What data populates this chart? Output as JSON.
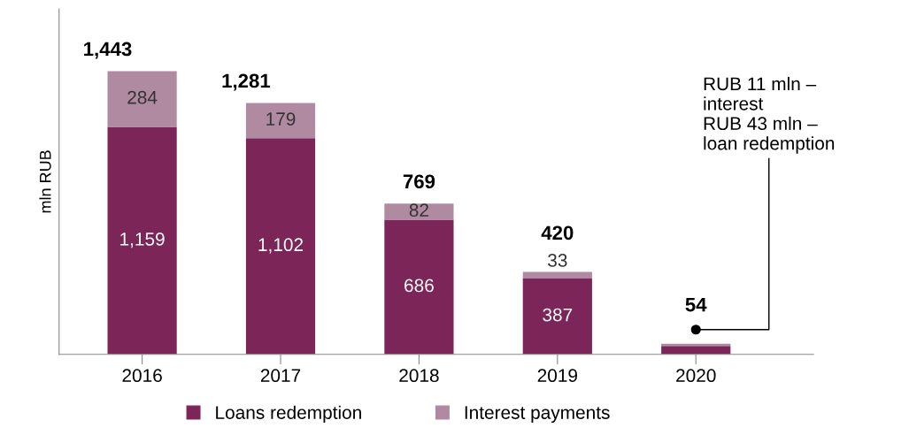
{
  "chart_data": {
    "type": "bar",
    "stacked": true,
    "relative": false,
    "ylabel": "mln RUB",
    "categories": [
      "2016",
      "2017",
      "2018",
      "2019",
      "2020"
    ],
    "series": [
      {
        "name": "Loans redemption",
        "color": "#7b2559",
        "values": [
          1159,
          1102,
          686,
          387,
          43
        ],
        "value_labels": [
          "1,159",
          "1,102",
          "686",
          "387",
          null
        ]
      },
      {
        "name": "Interest payments",
        "color": "#b08aa0",
        "values": [
          284,
          179,
          82,
          33,
          11
        ],
        "value_labels": [
          "284",
          "179",
          "82",
          "33",
          null
        ]
      }
    ],
    "totals": [
      "1,443",
      "1,281",
      "769",
      "420",
      "54"
    ],
    "annotations": [
      "RUB 11 mln –\ninterest\nRUB 43 mln –\nloan redemption"
    ],
    "legend": "bottom",
    "grid": false
  }
}
